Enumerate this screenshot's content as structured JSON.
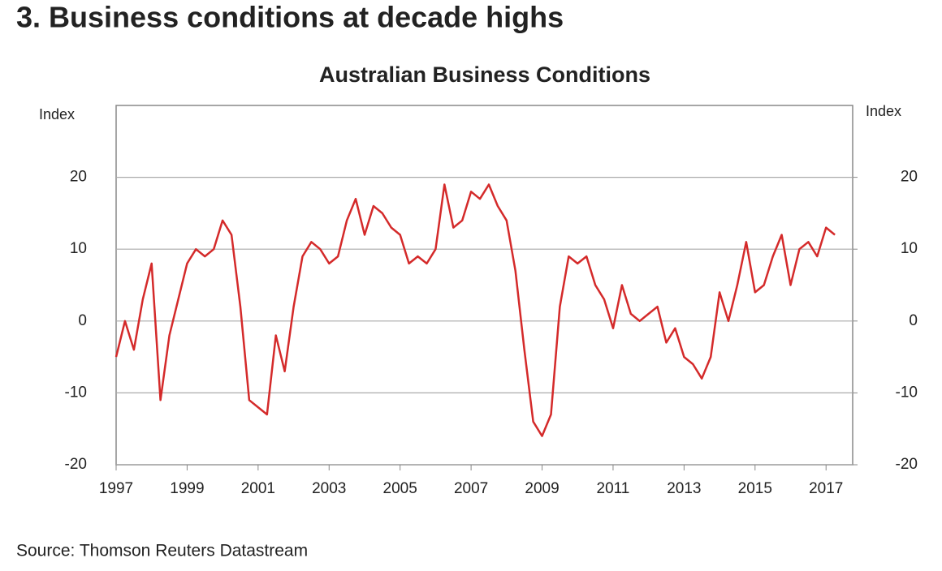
{
  "title": "3. Business conditions at decade highs",
  "source": "Source: Thomson Reuters Datastream",
  "chart_data": {
    "type": "line",
    "title": "Australian Business Conditions",
    "y_label": "Index",
    "y2_label": "Index",
    "x": [
      1997.0,
      1997.25,
      1997.5,
      1997.75,
      1998.0,
      1998.25,
      1998.5,
      1998.75,
      1999.0,
      1999.25,
      1999.5,
      1999.75,
      2000.0,
      2000.25,
      2000.5,
      2000.75,
      2001.0,
      2001.25,
      2001.5,
      2001.75,
      2002.0,
      2002.25,
      2002.5,
      2002.75,
      2003.0,
      2003.25,
      2003.5,
      2003.75,
      2004.0,
      2004.25,
      2004.5,
      2004.75,
      2005.0,
      2005.25,
      2005.5,
      2005.75,
      2006.0,
      2006.25,
      2006.5,
      2006.75,
      2007.0,
      2007.25,
      2007.5,
      2007.75,
      2008.0,
      2008.25,
      2008.5,
      2008.75,
      2009.0,
      2009.25,
      2009.5,
      2009.75,
      2010.0,
      2010.25,
      2010.5,
      2010.75,
      2011.0,
      2011.25,
      2011.5,
      2011.75,
      2012.0,
      2012.25,
      2012.5,
      2012.75,
      2013.0,
      2013.25,
      2013.5,
      2013.75,
      2014.0,
      2014.25,
      2014.5,
      2014.75,
      2015.0,
      2015.25,
      2015.5,
      2015.75,
      2016.0,
      2016.25,
      2016.5,
      2016.75,
      2017.0,
      2017.25
    ],
    "values": [
      -5,
      0,
      -4,
      3,
      8,
      -11,
      -2,
      3,
      8,
      10,
      9,
      10,
      14,
      12,
      2,
      -11,
      -12,
      -13,
      -2,
      -7,
      2,
      9,
      11,
      10,
      8,
      9,
      14,
      17,
      12,
      16,
      15,
      13,
      12,
      8,
      9,
      8,
      10,
      19,
      13,
      14,
      18,
      17,
      19,
      16,
      14,
      7,
      -4,
      -14,
      -16,
      -13,
      2,
      9,
      8,
      9,
      5,
      3,
      -1,
      5,
      1,
      0,
      1,
      2,
      -3,
      -1,
      -5,
      -6,
      -8,
      -5,
      4,
      0,
      5,
      11,
      4,
      5,
      9,
      12,
      5,
      10,
      11,
      9,
      13,
      12
    ],
    "color": "#d42a2a",
    "xlim": [
      1997,
      2017.75
    ],
    "xticks": [
      1997,
      1999,
      2001,
      2003,
      2005,
      2007,
      2009,
      2011,
      2013,
      2015,
      2017
    ],
    "ylim": [
      -20,
      30
    ],
    "yticks": [
      -20,
      -10,
      0,
      10,
      20
    ],
    "y2lim": [
      -20,
      30
    ],
    "y2ticks": [
      -20,
      -10,
      0,
      10,
      20
    ],
    "grid": true
  }
}
